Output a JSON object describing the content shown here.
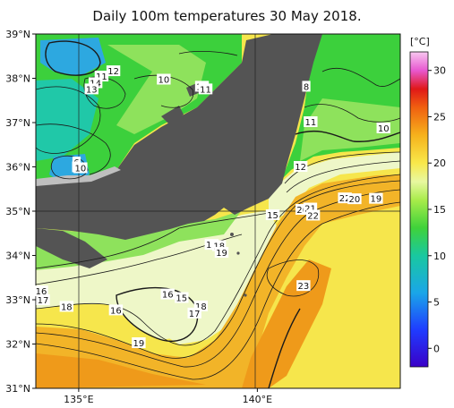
{
  "title": "Daily 100m temperatures 30 May 2018.",
  "lat_ticks": [
    {
      "label": "39°N",
      "lat": 39
    },
    {
      "label": "38°N",
      "lat": 38
    },
    {
      "label": "37°N",
      "lat": 37
    },
    {
      "label": "36°N",
      "lat": 36
    },
    {
      "label": "35°N",
      "lat": 35
    },
    {
      "label": "34°N",
      "lat": 34
    },
    {
      "label": "33°N",
      "lat": 33
    },
    {
      "label": "32°N",
      "lat": 32
    },
    {
      "label": "31°N",
      "lat": 31
    }
  ],
  "lon_ticks": [
    {
      "label": "135°E",
      "lon": 135
    },
    {
      "label": "140°E",
      "lon": 140
    }
  ],
  "extent": {
    "lon_min": 133.8,
    "lon_max": 144.0,
    "lat_min": 31.0,
    "lat_max": 39.0
  },
  "colorbar": {
    "unit": "[°C]",
    "min": -2,
    "max": 32,
    "ticks": [
      {
        "label": "30",
        "value": 30
      },
      {
        "label": "25",
        "value": 25
      },
      {
        "label": "20",
        "value": 20
      },
      {
        "label": "15",
        "value": 15
      },
      {
        "label": "10",
        "value": 10
      },
      {
        "label": "5",
        "value": 5
      },
      {
        "label": "0",
        "value": 0
      }
    ],
    "stops": [
      {
        "value": -2,
        "color": "#3a00c8"
      },
      {
        "value": 2,
        "color": "#1f3cff"
      },
      {
        "value": 6,
        "color": "#1aa6e8"
      },
      {
        "value": 10,
        "color": "#19c8a0"
      },
      {
        "value": 13,
        "color": "#3fd23a"
      },
      {
        "value": 16,
        "color": "#a8ec4a"
      },
      {
        "value": 18,
        "color": "#e8f8a0"
      },
      {
        "value": 20,
        "color": "#f8e84a"
      },
      {
        "value": 23,
        "color": "#f6b21c"
      },
      {
        "value": 26,
        "color": "#f06010"
      },
      {
        "value": 28,
        "color": "#e01818"
      },
      {
        "value": 30,
        "color": "#e858d0"
      },
      {
        "value": 32,
        "color": "#f8c8f0"
      }
    ]
  },
  "colors": {
    "land": "#545454",
    "coast_gray": "#bfbfbf",
    "cold_blue": "#2da8e0",
    "teal": "#20c8a8",
    "green": "#3cd03c",
    "lime": "#8ee25c",
    "pale": "#eef7c8",
    "yellow": "#f6e64c",
    "orange": "#f2b428",
    "deep_orange": "#ef9a1a"
  },
  "contour_labels": [
    {
      "text": "12",
      "lon": 135.97,
      "lat": 38.17
    },
    {
      "text": "11",
      "lon": 135.64,
      "lat": 38.05
    },
    {
      "text": "14",
      "lon": 135.47,
      "lat": 37.9
    },
    {
      "text": "13",
      "lon": 135.36,
      "lat": 37.76
    },
    {
      "text": "10",
      "lon": 137.38,
      "lat": 37.98
    },
    {
      "text": "10",
      "lon": 138.45,
      "lat": 37.82
    },
    {
      "text": "11",
      "lon": 138.55,
      "lat": 37.76
    },
    {
      "text": "8",
      "lon": 141.37,
      "lat": 37.82
    },
    {
      "text": "11",
      "lon": 141.49,
      "lat": 37.02
    },
    {
      "text": "10",
      "lon": 143.53,
      "lat": 36.88
    },
    {
      "text": "6",
      "lon": 134.94,
      "lat": 36.11
    },
    {
      "text": "8",
      "lon": 134.93,
      "lat": 36.0
    },
    {
      "text": "10",
      "lon": 135.05,
      "lat": 35.98
    },
    {
      "text": "12",
      "lon": 141.21,
      "lat": 36.01
    },
    {
      "text": "22",
      "lon": 142.45,
      "lat": 35.3
    },
    {
      "text": "20",
      "lon": 142.72,
      "lat": 35.28
    },
    {
      "text": "19",
      "lon": 143.32,
      "lat": 35.29
    },
    {
      "text": "15",
      "lon": 140.43,
      "lat": 34.92
    },
    {
      "text": "20",
      "lon": 141.26,
      "lat": 35.04
    },
    {
      "text": "21",
      "lon": 141.48,
      "lat": 35.07
    },
    {
      "text": "22",
      "lon": 141.56,
      "lat": 34.91
    },
    {
      "text": "17",
      "lon": 138.72,
      "lat": 34.25
    },
    {
      "text": "18",
      "lon": 138.93,
      "lat": 34.22
    },
    {
      "text": "19",
      "lon": 139.0,
      "lat": 34.07
    },
    {
      "text": "23",
      "lon": 141.29,
      "lat": 33.32
    },
    {
      "text": "16",
      "lon": 133.95,
      "lat": 33.2
    },
    {
      "text": "17",
      "lon": 134.0,
      "lat": 33.0
    },
    {
      "text": "18",
      "lon": 134.66,
      "lat": 32.85
    },
    {
      "text": "16",
      "lon": 137.49,
      "lat": 33.13
    },
    {
      "text": "15",
      "lon": 137.88,
      "lat": 33.05
    },
    {
      "text": "16",
      "lon": 136.04,
      "lat": 32.77
    },
    {
      "text": "18",
      "lon": 138.42,
      "lat": 32.86
    },
    {
      "text": "17",
      "lon": 138.24,
      "lat": 32.7
    },
    {
      "text": "19",
      "lon": 136.68,
      "lat": 32.03
    }
  ]
}
